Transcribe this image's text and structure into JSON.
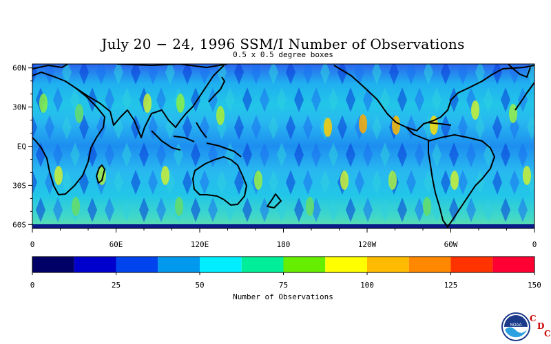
{
  "figure": {
    "title": "July 20 − 24, 1996 SSM/I Number of Observations",
    "subtitle": "0.5 x 0.5 degree boxes"
  },
  "map": {
    "lat_labels": [
      "60N",
      "30N",
      "EQ",
      "30S",
      "60S"
    ],
    "lon_labels": [
      "0",
      "60E",
      "120E",
      "180",
      "120W",
      "60W",
      "0"
    ],
    "lat_range": [
      -63,
      63
    ],
    "lon_range": [
      0,
      360
    ]
  },
  "colorbar": {
    "title": "Number of Observations",
    "tick_labels": [
      "0",
      "25",
      "50",
      "75",
      "100",
      "125",
      "150"
    ],
    "range": [
      0,
      150
    ],
    "colors": [
      "#000066",
      "#0000cc",
      "#0044ee",
      "#0099ee",
      "#00eeff",
      "#00ee99",
      "#66ee00",
      "#ffff00",
      "#ffbb00",
      "#ff8800",
      "#ff3300",
      "#ff0033"
    ]
  },
  "logo": {
    "noaa_text": "NOAA",
    "cdc_letters": [
      "C",
      "D",
      "C"
    ]
  }
}
